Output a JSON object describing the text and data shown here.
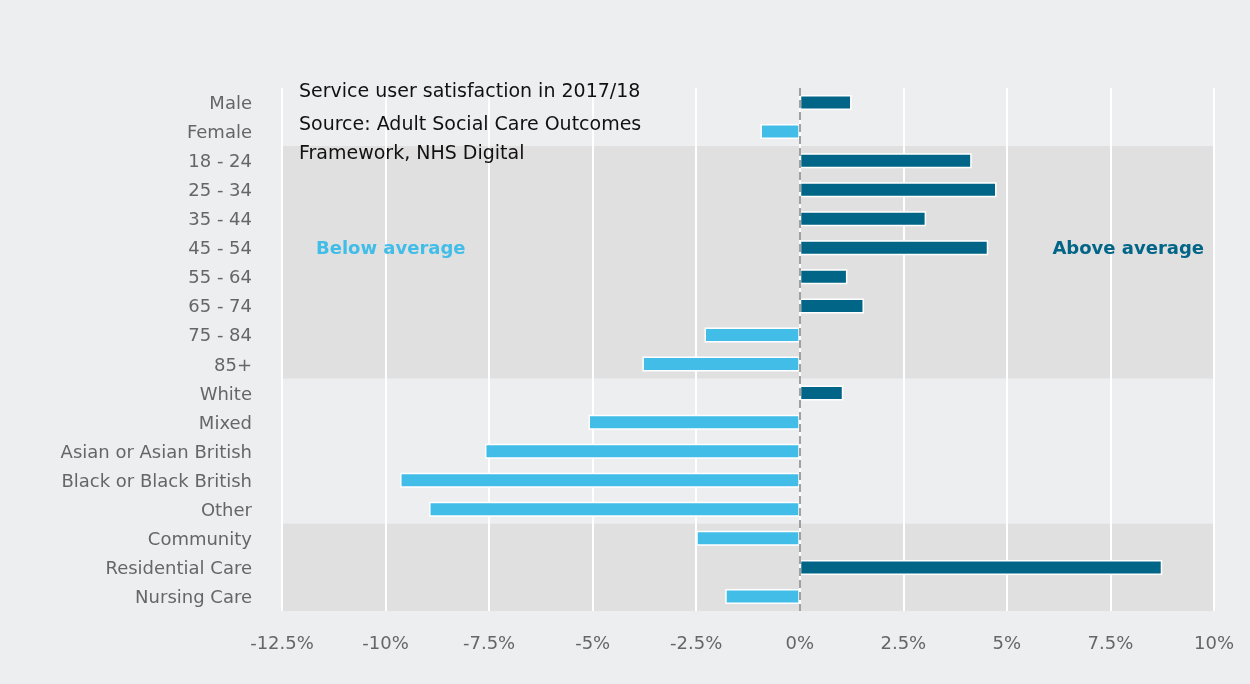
{
  "chart_data": {
    "type": "bar",
    "orientation": "horizontal",
    "title": "Service user satisfaction in 2017/18",
    "subtitle": "Source: Adult Social Care Outcomes Framework, NHS Digital",
    "categories": [
      "Male",
      "Female",
      "18 - 24",
      "25 - 34",
      "35 - 44",
      "45 - 54",
      "55 - 64",
      "65 - 74",
      "75 - 84",
      "85+",
      "White",
      "Mixed",
      "Asian or Asian British",
      "Black or Black British",
      "Other",
      "Community",
      "Residential Care",
      "Nursing Care"
    ],
    "values": [
      1.25,
      -0.95,
      4.15,
      4.75,
      3.05,
      4.55,
      1.15,
      1.55,
      -2.3,
      -3.8,
      1.05,
      -5.1,
      -7.6,
      -9.65,
      -8.95,
      -2.5,
      8.75,
      -1.8
    ],
    "colors": [
      "#006586",
      "#41bde8",
      "#006586",
      "#006586",
      "#006586",
      "#006586",
      "#006586",
      "#006586",
      "#41bde8",
      "#41bde8",
      "#006586",
      "#41bde8",
      "#41bde8",
      "#41bde8",
      "#41bde8",
      "#41bde8",
      "#006586",
      "#41bde8"
    ],
    "xlim": [
      -12.5,
      10
    ],
    "xticks": [
      {
        "value": -12.5,
        "label": "-12.5%"
      },
      {
        "value": -10,
        "label": "-10%"
      },
      {
        "value": -7.5,
        "label": "-7.5%"
      },
      {
        "value": -5,
        "label": "-5%"
      },
      {
        "value": -2.5,
        "label": "-2.5%"
      },
      {
        "value": 0,
        "label": "0%"
      },
      {
        "value": 2.5,
        "label": "2.5%"
      },
      {
        "value": 5,
        "label": "5%"
      },
      {
        "value": 7.5,
        "label": "7.5%"
      },
      {
        "value": 10,
        "label": "10%"
      }
    ],
    "grid": "x",
    "ref_lines": [
      {
        "axis": "x",
        "value": 0,
        "label": null,
        "color": "#a0a0a0",
        "line_style": "dashed"
      }
    ],
    "bands": [
      {
        "axis": "y",
        "from": "18 - 24",
        "to": "85+",
        "label": null,
        "color": "#e0e0e0"
      },
      {
        "axis": "y",
        "from": "Community",
        "to": "Nursing Care",
        "label": null,
        "color": "#e0e0e0"
      }
    ],
    "annotations": [
      "Below average",
      "Above average"
    ]
  }
}
